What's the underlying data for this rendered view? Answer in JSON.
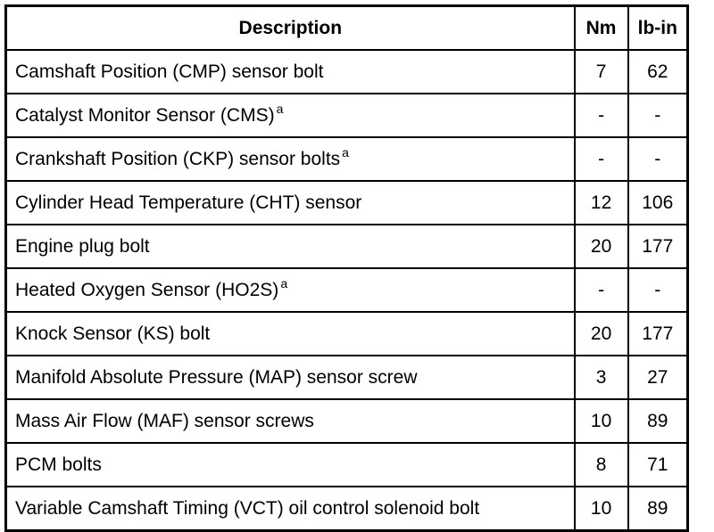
{
  "table": {
    "header": [
      "Description",
      "Nm",
      "lb-in"
    ],
    "rows": [
      {
        "description": "Camshaft Position (CMP) sensor bolt",
        "nm": "7",
        "lbin": "62"
      },
      {
        "description": "Catalyst Monitor Sensor (CMS)",
        "note": "a",
        "nm": "-",
        "lbin": "-"
      },
      {
        "description": "Crankshaft Position (CKP) sensor bolts",
        "note": "a",
        "nm": "-",
        "lbin": "-"
      },
      {
        "description": "Cylinder Head Temperature (CHT) sensor",
        "nm": "12",
        "lbin": "106"
      },
      {
        "description": "Engine plug bolt",
        "nm": "20",
        "lbin": "177"
      },
      {
        "description": "Heated Oxygen Sensor (HO2S)",
        "note": "a",
        "nm": "-",
        "lbin": "-"
      },
      {
        "description": "Knock Sensor (KS) bolt",
        "nm": "20",
        "lbin": "177"
      },
      {
        "description": "Manifold Absolute Pressure (MAP) sensor screw",
        "nm": "3",
        "lbin": "27"
      },
      {
        "description": "Mass Air Flow (MAF) sensor screws",
        "nm": "10",
        "lbin": "89"
      },
      {
        "description": "PCM bolts",
        "nm": "8",
        "lbin": "71"
      },
      {
        "description": "Variable Camshaft Timing (VCT) oil control solenoid bolt",
        "nm": "10",
        "lbin": "89"
      }
    ]
  }
}
